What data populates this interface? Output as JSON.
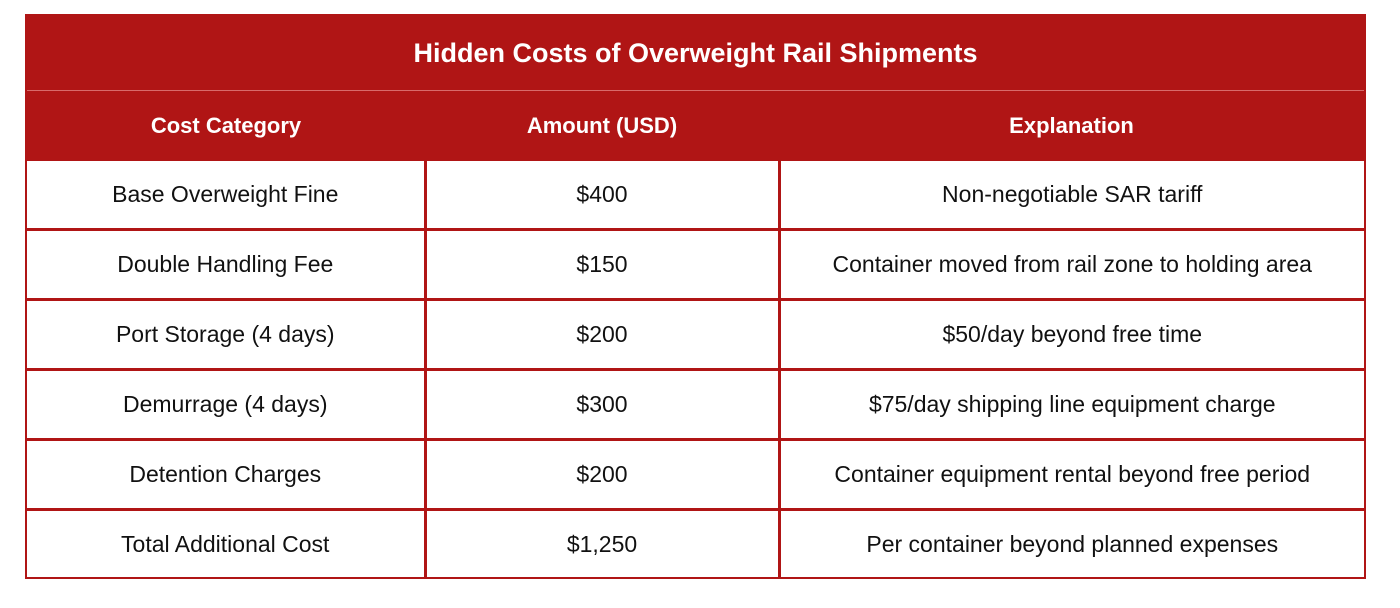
{
  "title": "Hidden Costs of Overweight Rail Shipments",
  "headers": {
    "category": "Cost Category",
    "amount": "Amount (USD)",
    "explanation": "Explanation"
  },
  "rows": [
    {
      "category": "Base Overweight Fine",
      "amount": "$400",
      "explanation": "Non-negotiable SAR tariff"
    },
    {
      "category": "Double Handling Fee",
      "amount": "$150",
      "explanation": "Container moved from rail zone to holding area"
    },
    {
      "category": "Port Storage (4 days)",
      "amount": "$200",
      "explanation": "$50/day beyond free time"
    },
    {
      "category": "Demurrage (4 days)",
      "amount": "$300",
      "explanation": "$75/day shipping line equipment charge"
    },
    {
      "category": "Detention Charges",
      "amount": "$200",
      "explanation": "Container equipment rental beyond free period"
    },
    {
      "category": "Total Additional Cost",
      "amount": "$1,250",
      "explanation": "Per container beyond planned expenses"
    }
  ],
  "colors": {
    "accent": "#b01515",
    "header_text": "#ffffff",
    "body_text": "#111111"
  }
}
